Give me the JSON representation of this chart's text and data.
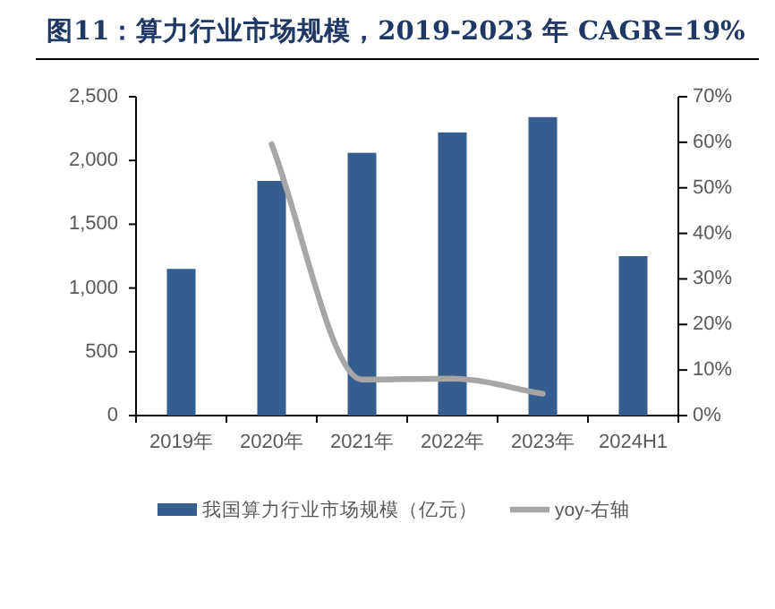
{
  "chart_data": {
    "type": "bar",
    "title": "图11：算力行业市场规模，2019-2023 年 CAGR=19%",
    "categories": [
      "2019年",
      "2020年",
      "2021年",
      "2022年",
      "2023年",
      "2024H1"
    ],
    "series": [
      {
        "name": "我国算力行业市场规模（亿元）",
        "color": "#355e8e",
        "values": [
          1150,
          1840,
          2060,
          2220,
          2340,
          1250
        ]
      },
      {
        "name": "yoy-右轴",
        "type": "line",
        "axis": "y2",
        "color": "#a6a6a6",
        "values": [
          null,
          59.6,
          7.9,
          8.1,
          4.8,
          null
        ]
      }
    ],
    "ylim": [
      0,
      2500
    ],
    "yticks": [
      {
        "value": 0,
        "label": "0"
      },
      {
        "value": 500,
        "label": "500"
      },
      {
        "value": 1000,
        "label": "1,000"
      },
      {
        "value": 1500,
        "label": "1,500"
      },
      {
        "value": 2000,
        "label": "2,000"
      },
      {
        "value": 2500,
        "label": "2,500"
      }
    ],
    "y2lim": [
      0,
      70
    ],
    "y2ticks": [
      {
        "value": 0,
        "label": "0%"
      },
      {
        "value": 10,
        "label": "10%"
      },
      {
        "value": 20,
        "label": "20%"
      },
      {
        "value": 30,
        "label": "30%"
      },
      {
        "value": 40,
        "label": "40%"
      },
      {
        "value": 50,
        "label": "50%"
      },
      {
        "value": 60,
        "label": "60%"
      },
      {
        "value": 70,
        "label": "70%"
      }
    ],
    "legend": "bottom"
  }
}
